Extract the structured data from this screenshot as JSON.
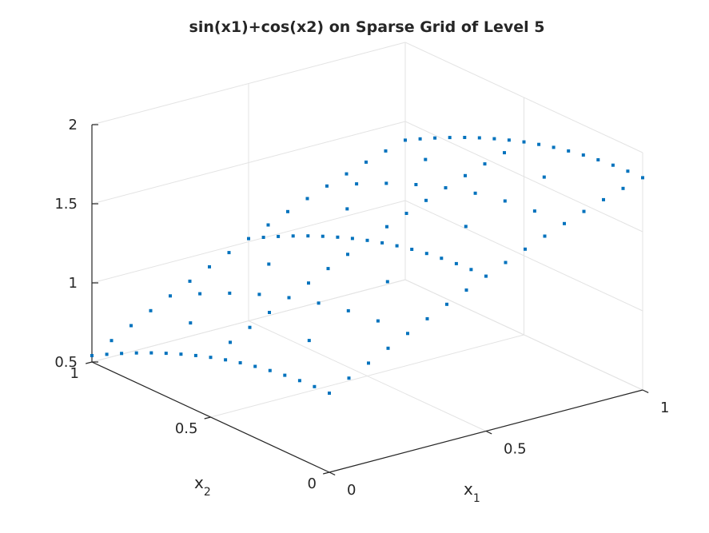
{
  "chart_data": {
    "type": "scatter3d",
    "title": "sin(x1)+cos(x2) on Sparse Grid of Level 5",
    "xlabel": "x",
    "xlabel_sub": "1",
    "ylabel": "x",
    "ylabel_sub": "2",
    "zlabel": "",
    "xlim": [
      0,
      1
    ],
    "ylim": [
      0,
      1
    ],
    "zlim": [
      0.5,
      2
    ],
    "xticks": [
      "0",
      "0.5",
      "1"
    ],
    "yticks": [
      "0",
      "0.5",
      "1"
    ],
    "zticks": [
      "0.5",
      "1",
      "1.5",
      "2"
    ],
    "grid": true,
    "marker_color": "#0072BD",
    "function": "sin(x1)+cos(x2)",
    "level": 5,
    "x1_values": [
      0,
      0.0625,
      0.125,
      0.1875,
      0.25,
      0.3125,
      0.375,
      0.4375,
      0.5,
      0.5625,
      0.625,
      0.6875,
      0.75,
      0.8125,
      0.875,
      0.9375,
      1
    ],
    "x2_values": [
      0,
      0.0625,
      0.125,
      0.1875,
      0.25,
      0.3125,
      0.375,
      0.4375,
      0.5,
      0.5625,
      0.625,
      0.6875,
      0.75,
      0.8125,
      0.875,
      0.9375,
      1
    ],
    "points": [
      [
        0,
        0,
        1
      ],
      [
        0.0625,
        0,
        1.0625
      ],
      [
        0.125,
        0,
        1.1247
      ],
      [
        0.1875,
        0,
        1.1864
      ],
      [
        0.25,
        0,
        1.2474
      ],
      [
        0.3125,
        0,
        1.3074
      ],
      [
        0.375,
        0,
        1.3663
      ],
      [
        0.4375,
        0,
        1.4237
      ],
      [
        0.5,
        0,
        1.4794
      ],
      [
        0.5625,
        0,
        1.5333
      ],
      [
        0.625,
        0,
        1.5851
      ],
      [
        0.6875,
        0,
        1.6347
      ],
      [
        0.75,
        0,
        1.6816
      ],
      [
        0.8125,
        0,
        1.726
      ],
      [
        0.875,
        0,
        1.7675
      ],
      [
        0.9375,
        0,
        1.806
      ],
      [
        1,
        0,
        1.8415
      ],
      [
        0,
        0.0625,
        0.998
      ],
      [
        0,
        0.125,
        0.9922
      ],
      [
        0,
        0.1875,
        0.9825
      ],
      [
        0,
        0.25,
        0.9689
      ],
      [
        0,
        0.3125,
        0.9516
      ],
      [
        0,
        0.375,
        0.9305
      ],
      [
        0,
        0.4375,
        0.9058
      ],
      [
        0,
        0.5,
        0.8776
      ],
      [
        0,
        0.5625,
        0.8459
      ],
      [
        0,
        0.625,
        0.811
      ],
      [
        0,
        0.6875,
        0.7728
      ],
      [
        0,
        0.75,
        0.7317
      ],
      [
        0,
        0.8125,
        0.6877
      ],
      [
        0,
        0.875,
        0.641
      ],
      [
        0,
        0.9375,
        0.5918
      ],
      [
        0,
        1,
        0.5403
      ],
      [
        1,
        0.0625,
        1.8395
      ],
      [
        1,
        0.125,
        1.8337
      ],
      [
        1,
        0.1875,
        1.8239
      ],
      [
        1,
        0.25,
        1.8104
      ],
      [
        1,
        0.3125,
        1.793
      ],
      [
        1,
        0.375,
        1.772
      ],
      [
        1,
        0.4375,
        1.7473
      ],
      [
        1,
        0.5,
        1.7191
      ],
      [
        1,
        0.5625,
        1.6874
      ],
      [
        1,
        0.625,
        1.6524
      ],
      [
        1,
        0.6875,
        1.6143
      ],
      [
        1,
        0.75,
        1.5732
      ],
      [
        1,
        0.8125,
        1.5292
      ],
      [
        1,
        0.875,
        1.4825
      ],
      [
        1,
        0.9375,
        1.4333
      ],
      [
        1,
        1,
        1.3818
      ],
      [
        0.0625,
        1,
        0.6028
      ],
      [
        0.125,
        1,
        0.665
      ],
      [
        0.1875,
        1,
        0.7267
      ],
      [
        0.25,
        1,
        0.7877
      ],
      [
        0.3125,
        1,
        0.8478
      ],
      [
        0.375,
        1,
        0.9066
      ],
      [
        0.4375,
        1,
        0.964
      ],
      [
        0.5,
        1,
        1.0197
      ],
      [
        0.5625,
        1,
        1.0736
      ],
      [
        0.625,
        1,
        1.1254
      ],
      [
        0.6875,
        1,
        1.175
      ],
      [
        0.75,
        1,
        1.222
      ],
      [
        0.8125,
        1,
        1.2663
      ],
      [
        0.875,
        1,
        1.3078
      ],
      [
        0.9375,
        1,
        1.3463
      ],
      [
        0.0625,
        0.5,
        0.94
      ],
      [
        0.125,
        0.5,
        1.0023
      ],
      [
        0.1875,
        0.5,
        1.064
      ],
      [
        0.25,
        0.5,
        1.125
      ],
      [
        0.3125,
        0.5,
        1.185
      ],
      [
        0.375,
        0.5,
        1.2439
      ],
      [
        0.4375,
        0.5,
        1.3013
      ],
      [
        0.5,
        0.5,
        1.357
      ],
      [
        0.5625,
        0.5,
        1.4109
      ],
      [
        0.625,
        0.5,
        1.4627
      ],
      [
        0.6875,
        0.5,
        1.5123
      ],
      [
        0.75,
        0.5,
        1.5592
      ],
      [
        0.8125,
        0.5,
        1.6036
      ],
      [
        0.875,
        0.5,
        1.6451
      ],
      [
        0.9375,
        0.5,
        1.6836
      ],
      [
        0.5,
        0.0625,
        1.4775
      ],
      [
        0.5,
        0.125,
        1.4716
      ],
      [
        0.5,
        0.1875,
        1.4619
      ],
      [
        0.5,
        0.25,
        1.4483
      ],
      [
        0.5,
        0.3125,
        1.431
      ],
      [
        0.5,
        0.375,
        1.41
      ],
      [
        0.5,
        0.4375,
        1.3852
      ],
      [
        0.5,
        0.5625,
        1.3254
      ],
      [
        0.5,
        0.625,
        1.2904
      ],
      [
        0.5,
        0.6875,
        1.2522
      ],
      [
        0.5,
        0.75,
        1.2111
      ],
      [
        0.5,
        0.8125,
        1.1671
      ],
      [
        0.5,
        0.875,
        1.1204
      ],
      [
        0.5,
        0.9375,
        1.0712
      ],
      [
        0.25,
        0.25,
        1.2163
      ],
      [
        0.75,
        0.25,
        1.6505
      ],
      [
        0.25,
        0.75,
        0.9791
      ],
      [
        0.75,
        0.75,
        1.4133
      ],
      [
        0.25,
        0.125,
        1.2396
      ],
      [
        0.25,
        0.375,
        1.1778
      ],
      [
        0.25,
        0.625,
        1.0584
      ],
      [
        0.25,
        0.875,
        0.8886
      ],
      [
        0.75,
        0.125,
        1.6738
      ],
      [
        0.75,
        0.375,
        1.6121
      ],
      [
        0.75,
        0.625,
        1.4926
      ],
      [
        0.75,
        0.875,
        1.3228
      ],
      [
        0.125,
        0.25,
        1.0936
      ],
      [
        0.375,
        0.25,
        1.3352
      ],
      [
        0.625,
        0.25,
        1.5541
      ],
      [
        0.875,
        0.25,
        1.7363
      ],
      [
        0.125,
        0.75,
        0.8564
      ],
      [
        0.375,
        0.75,
        1.098
      ],
      [
        0.625,
        0.75,
        1.3169
      ],
      [
        0.875,
        0.75,
        1.4991
      ]
    ]
  }
}
